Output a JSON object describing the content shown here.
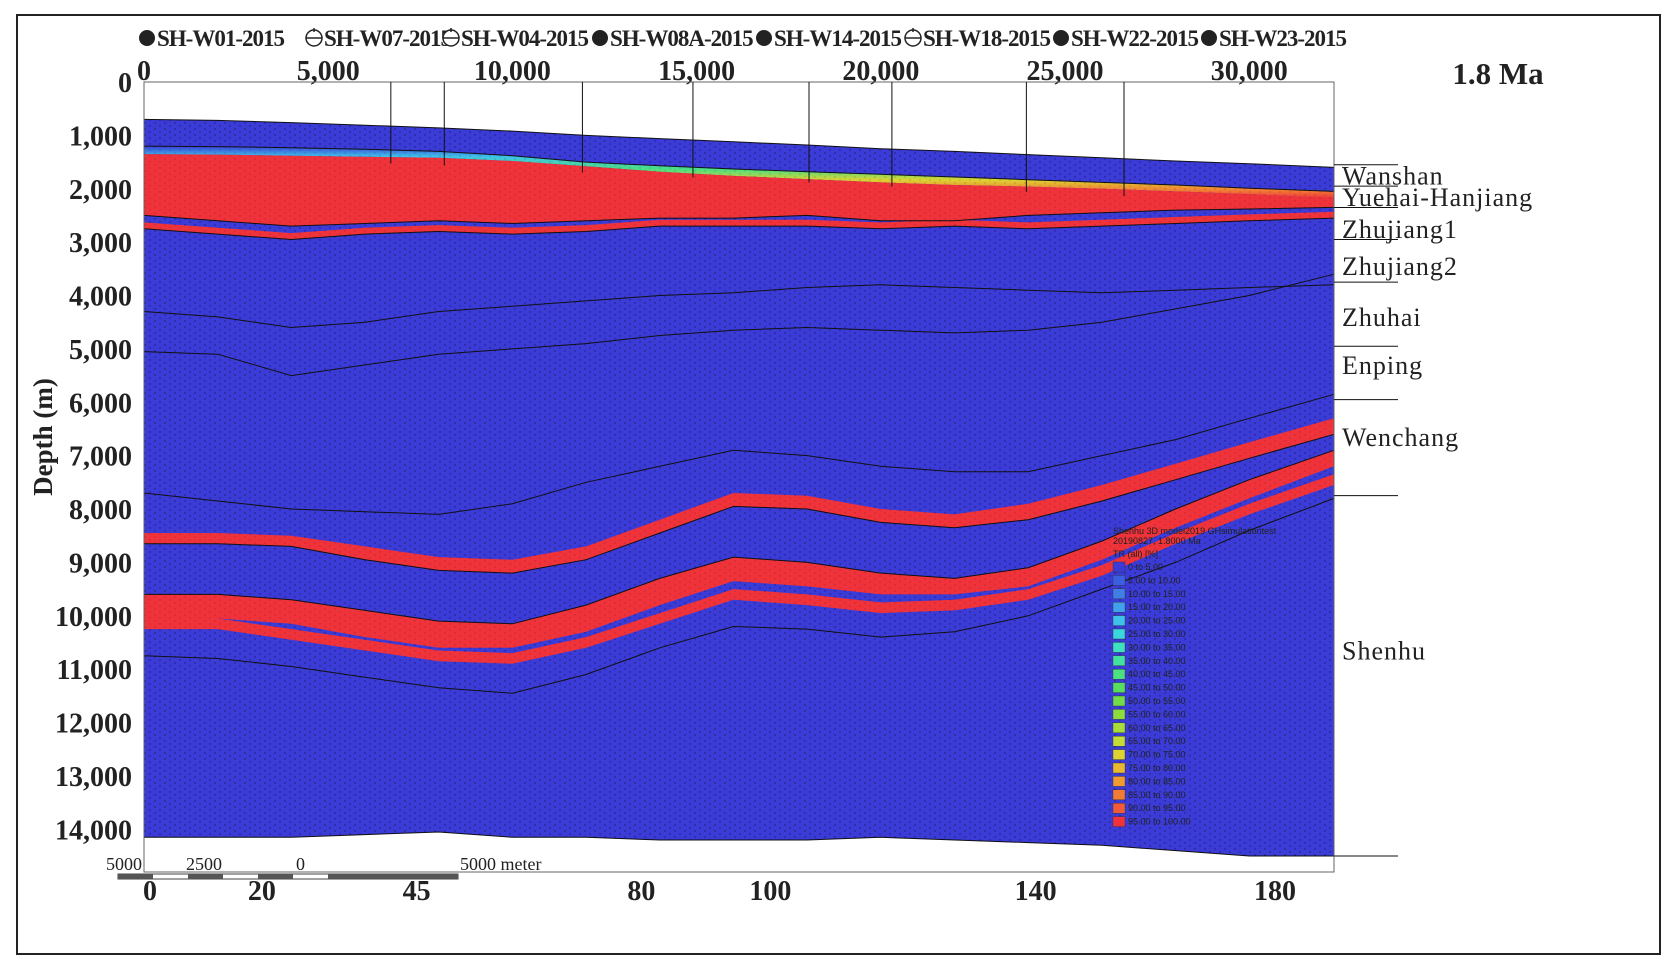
{
  "chart_data": {
    "type": "heatmap",
    "title": "1.8 Ma",
    "wells": [
      "SH-W01-2015",
      "SH-W07-2015",
      "SH-W04-2015",
      "SH-W08A-2015",
      "SH-W14-2015",
      "SH-W18-2015",
      "SH-W22-2015",
      "SH-W23-2015"
    ],
    "well_markers": [
      "filled",
      "dry",
      "dry",
      "filled",
      "filled",
      "dry",
      "filled",
      "filled"
    ],
    "well_positions_m": [
      6700,
      8150,
      11900,
      14900,
      18050,
      20300,
      23950,
      26600
    ],
    "x_top_axis": {
      "ticks": [
        0,
        5000,
        10000,
        15000,
        20000,
        25000,
        30000
      ],
      "labels": [
        "0",
        "5,000",
        "10,000",
        "15,000",
        "20,000",
        "25,000",
        "30,000"
      ],
      "xlim": [
        0,
        32300
      ]
    },
    "x_bottom_axis": {
      "labels": [
        "0",
        "20",
        "45",
        "80",
        "100",
        "140",
        "180"
      ],
      "values": [
        0,
        20,
        45,
        80,
        100,
        140,
        180
      ],
      "positions_m": [
        0,
        3200,
        7400,
        13500,
        17000,
        24200,
        30700
      ]
    },
    "y_axis": {
      "label": "Depth (m)",
      "ticks": [
        0,
        1000,
        2000,
        3000,
        4000,
        5000,
        6000,
        7000,
        8000,
        9000,
        10000,
        11000,
        12000,
        13000,
        14000
      ],
      "labels": [
        "0",
        "1,000",
        "2,000",
        "3,000",
        "4,000",
        "5,000",
        "6,000",
        "7,000",
        "8,000",
        "9,000",
        "10,000",
        "11,000",
        "12,000",
        "13,000",
        "14,000"
      ],
      "ylim": [
        0,
        14800
      ]
    },
    "formations": [
      "Wanshan",
      "Yuehai-Hanjiang",
      "Zhujiang1",
      "Zhujiang2",
      "Zhuhai",
      "Enping",
      "Wenchang",
      "Shenhu"
    ],
    "formation_label_depths_m": [
      1750,
      2150,
      2750,
      3450,
      4400,
      5300,
      6650,
      10650
    ],
    "horizons_m": {
      "x": [
        0,
        2000,
        4000,
        6000,
        8000,
        10000,
        12000,
        14000,
        16000,
        18000,
        20000,
        22000,
        24000,
        26000,
        28000,
        30000,
        32300
      ],
      "seabed": [
        700,
        720,
        760,
        810,
        860,
        920,
        1000,
        1060,
        1120,
        1180,
        1250,
        1300,
        1360,
        1420,
        1480,
        1530,
        1600
      ],
      "wanshan_base": [
        1200,
        1210,
        1230,
        1260,
        1300,
        1380,
        1500,
        1570,
        1630,
        1680,
        1730,
        1780,
        1830,
        1880,
        1930,
        1990,
        2050
      ],
      "hot_top": [
        1350,
        1360,
        1380,
        1400,
        1420,
        1480,
        1580,
        1680,
        1760,
        1820,
        1880,
        1930,
        1960,
        2000,
        2050,
        2100,
        2180
      ],
      "yuehai_base": [
        2500,
        2600,
        2700,
        2650,
        2600,
        2650,
        2600,
        2550,
        2550,
        2500,
        2600,
        2600,
        2500,
        2450,
        2400,
        2380,
        2350
      ],
      "zhujiang1_base": [
        2750,
        2850,
        2950,
        2850,
        2800,
        2850,
        2800,
        2700,
        2700,
        2700,
        2750,
        2700,
        2750,
        2700,
        2650,
        2600,
        2550
      ],
      "zhujiang2_base": [
        4300,
        4400,
        4600,
        4500,
        4300,
        4200,
        4100,
        4000,
        3950,
        3850,
        3800,
        3850,
        3900,
        3950,
        3900,
        3850,
        3800
      ],
      "zhuhai_base": [
        5050,
        5100,
        5500,
        5300,
        5100,
        5000,
        4900,
        4750,
        4650,
        4600,
        4650,
        4700,
        4650,
        4500,
        4250,
        4000,
        3600
      ],
      "enping_base": [
        7700,
        7850,
        8000,
        8050,
        8100,
        7900,
        7500,
        7200,
        6900,
        7000,
        7200,
        7300,
        7300,
        7000,
        6700,
        6300,
        5850
      ],
      "upper_hot_top": [
        8450,
        8450,
        8500,
        8700,
        8900,
        8950,
        8700,
        8200,
        7700,
        7750,
        8000,
        8100,
        7900,
        7550,
        7150,
        6750,
        6300
      ],
      "upper_hot_base": [
        8650,
        8650,
        8700,
        8950,
        9150,
        9200,
        8950,
        8450,
        7950,
        8000,
        8250,
        8350,
        8200,
        7850,
        7450,
        7050,
        6600
      ],
      "lower_hot_top": [
        9600,
        9600,
        9700,
        9900,
        10100,
        10150,
        9800,
        9300,
        8900,
        9000,
        9200,
        9300,
        9100,
        8600,
        8000,
        7450,
        6900
      ],
      "lower_hot_base": [
        10050,
        10050,
        10150,
        10400,
        10600,
        10600,
        10300,
        9800,
        9350,
        9450,
        9600,
        9600,
        9450,
        8950,
        8350,
        7800,
        7200
      ],
      "thin_hot_top": [
        10050,
        10050,
        10250,
        10450,
        10650,
        10700,
        10400,
        9950,
        9500,
        9600,
        9750,
        9700,
        9500,
        9050,
        8450,
        7900,
        7350
      ],
      "thin_hot_base": [
        10250,
        10250,
        10450,
        10650,
        10850,
        10900,
        10600,
        10150,
        9700,
        9800,
        9950,
        9900,
        9700,
        9250,
        8650,
        8100,
        7550
      ],
      "wenchang_base": [
        10750,
        10800,
        10950,
        11150,
        11350,
        11450,
        11100,
        10600,
        10200,
        10250,
        10400,
        10300,
        10000,
        9500,
        9000,
        8400,
        7800
      ],
      "basement": [
        14150,
        14150,
        14150,
        14100,
        14050,
        14150,
        14150,
        14200,
        14200,
        14200,
        14150,
        14200,
        14250,
        14300,
        14400,
        14500,
        14500
      ]
    },
    "legend": {
      "header": "Shenhu 3D model2019 GHsimulationtest",
      "header2": "20190827, 1.8000 Ma",
      "header3": "TR (all) [%]",
      "entries": [
        "0 to 5.00",
        "5.00 to 10.00",
        "10.00 to 15.00",
        "15.00 to 20.00",
        "20.00 to 25.00",
        "25.00 to 30.00",
        "30.00 to 35.00",
        "35.00 to 40.00",
        "40.00 to 45.00",
        "45.00 to 50.00",
        "50.00 to 55.00",
        "55.00 to 60.00",
        "60.00 to 65.00",
        "65.00 to 70.00",
        "70.00 to 75.00",
        "75.00 to 80.00",
        "80.00 to 85.00",
        "85.00 to 90.00",
        "90.00 to 95.00",
        "95.00 to 100.00"
      ],
      "colors": [
        "#3b3bd8",
        "#3b5fe0",
        "#3f7fe6",
        "#3fa2ea",
        "#3ec2ea",
        "#3ad8dc",
        "#3ee0c0",
        "#43e0a0",
        "#4ce080",
        "#58de5e",
        "#70dc48",
        "#8cdc3e",
        "#a8dc38",
        "#c4dc36",
        "#dcd232",
        "#eab830",
        "#f09a30",
        "#f27c34",
        "#f25a38",
        "#f0333a"
      ]
    },
    "scale_bar": {
      "labels": [
        "5000",
        "2500",
        "0",
        "5000 meter"
      ]
    }
  }
}
